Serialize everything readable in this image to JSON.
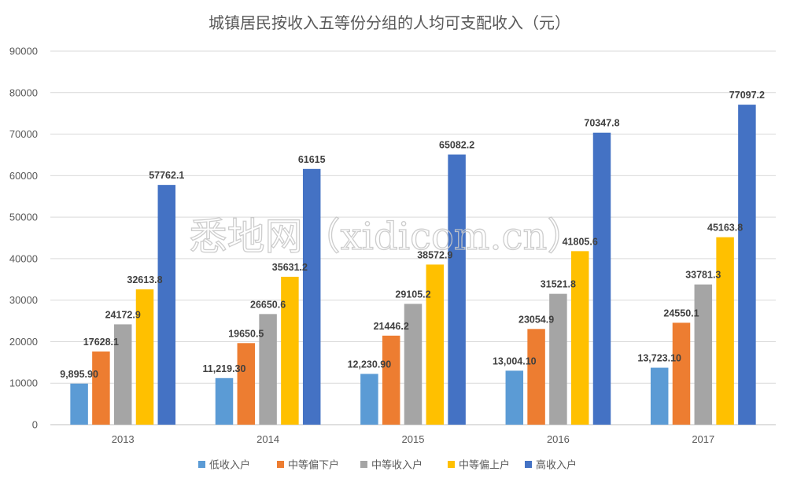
{
  "chart_data": {
    "type": "bar",
    "title": "城镇居民按收入五等份分组的人均可支配收入（元）",
    "categories": [
      "2013",
      "2014",
      "2015",
      "2016",
      "2017"
    ],
    "ylim": [
      0,
      90000
    ],
    "yticks": [
      "0",
      "10000",
      "20000",
      "30000",
      "40000",
      "50000",
      "60000",
      "70000",
      "80000",
      "90000"
    ],
    "grid": true,
    "legend_position": "bottom",
    "series": [
      {
        "name": "低收入户",
        "color": "#5B9BD5",
        "values": [
          9895.9,
          11219.3,
          12230.9,
          13004.1,
          13723.1
        ],
        "labels": [
          "9,895.90",
          "11,219.30",
          "12,230.90",
          "13,004.10",
          "13,723.10"
        ]
      },
      {
        "name": "中等偏下户",
        "color": "#ED7D31",
        "values": [
          17628.1,
          19650.5,
          21446.2,
          23054.9,
          24550.1
        ],
        "labels": [
          "17628.1",
          "19650.5",
          "21446.2",
          "23054.9",
          "24550.1"
        ]
      },
      {
        "name": "中等收入户",
        "color": "#A5A5A5",
        "values": [
          24172.9,
          26650.6,
          29105.2,
          31521.8,
          33781.3
        ],
        "labels": [
          "24172.9",
          "26650.6",
          "29105.2",
          "31521.8",
          "33781.3"
        ]
      },
      {
        "name": "中等偏上户",
        "color": "#FFC000",
        "values": [
          32613.8,
          35631.2,
          38572.9,
          41805.6,
          45163.8
        ],
        "labels": [
          "32613.8",
          "35631.2",
          "38572.9",
          "41805.6",
          "45163.8"
        ]
      },
      {
        "name": "高收入户",
        "color": "#4472C4",
        "values": [
          57762.1,
          61615,
          65082.2,
          70347.8,
          77097.2
        ],
        "labels": [
          "57762.1",
          "61615",
          "65082.2",
          "70347.8",
          "77097.2"
        ]
      }
    ]
  },
  "watermark": "悉地网（xidicom.cn）"
}
